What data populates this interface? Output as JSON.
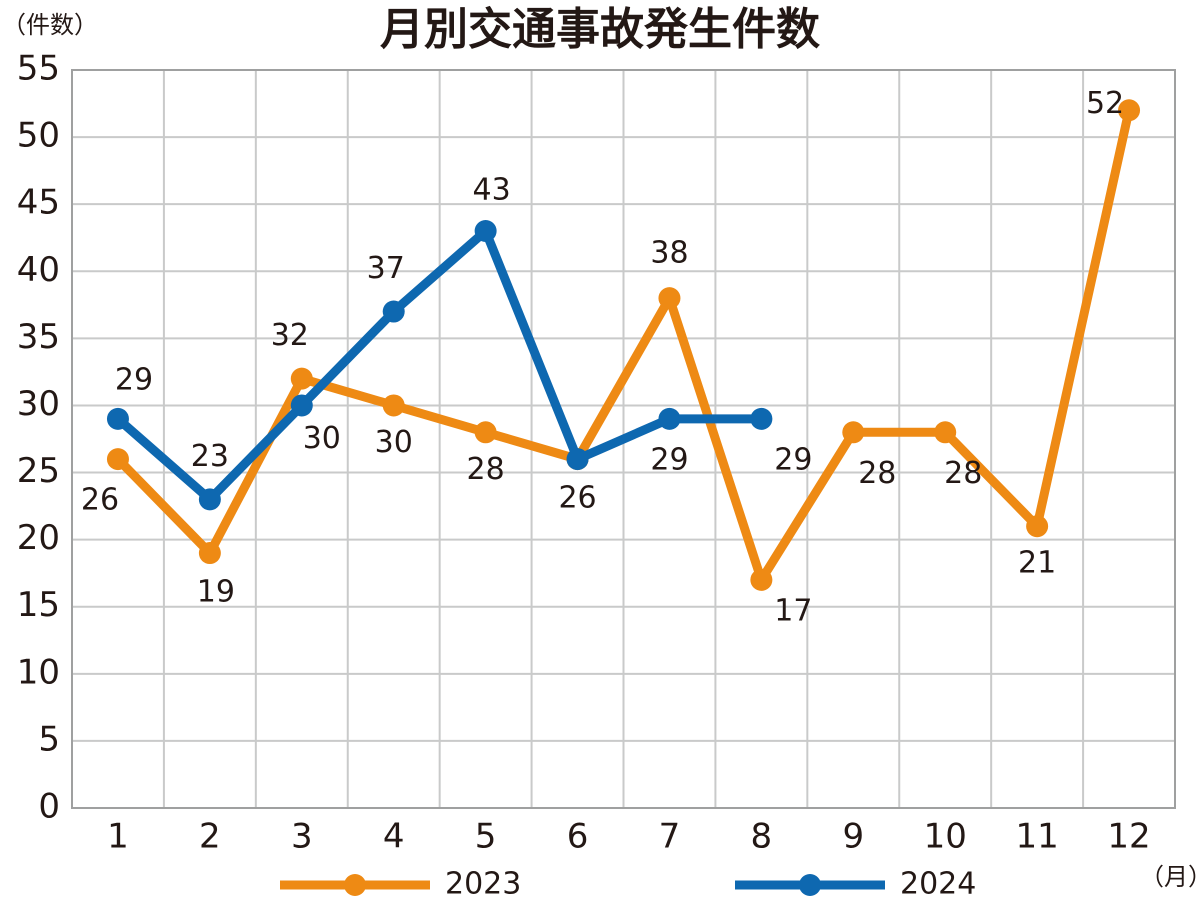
{
  "chart_data": {
    "type": "line",
    "title": "月別交通事故発生件数",
    "y_unit": "（件数）",
    "x_unit": "（月）",
    "categories": [
      "1",
      "2",
      "3",
      "4",
      "5",
      "6",
      "7",
      "8",
      "9",
      "10",
      "11",
      "12"
    ],
    "series": [
      {
        "name": "2023",
        "color": "#ee8a14",
        "values": [
          26,
          19,
          32,
          30,
          28,
          26,
          38,
          17,
          28,
          28,
          21,
          52
        ]
      },
      {
        "name": "2024",
        "color": "#0e68b0",
        "values": [
          29,
          23,
          30,
          37,
          43,
          26,
          29,
          29,
          null,
          null,
          null,
          null
        ]
      }
    ],
    "ylim": [
      0,
      55
    ],
    "yticks": [
      0,
      5,
      10,
      15,
      20,
      25,
      30,
      35,
      40,
      45,
      50,
      55
    ],
    "grid": true
  }
}
